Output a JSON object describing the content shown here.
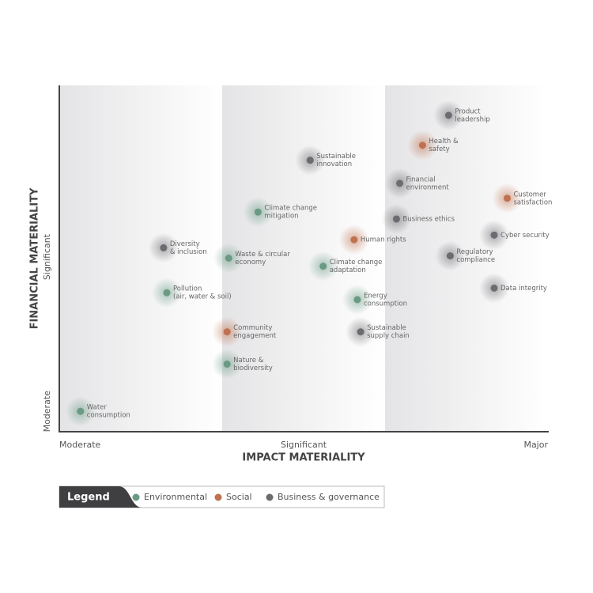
{
  "chart_data": {
    "type": "scatter",
    "xlabel": "IMPACT MATERIALITY",
    "ylabel": "FINANCIAL MATERIALITY",
    "xlim": [
      0,
      3
    ],
    "ylim": [
      0,
      3
    ],
    "xticks": [
      {
        "value": 0,
        "label": "Moderate"
      },
      {
        "value": 1.5,
        "label": "Significant"
      },
      {
        "value": 3,
        "label": "Major"
      }
    ],
    "yticks": [
      {
        "value": 0.17,
        "label": "Moderate"
      },
      {
        "value": 1.51,
        "label": "Significant"
      }
    ],
    "legend_title": "Legend",
    "series": [
      {
        "name": "Environmental",
        "color": "#6a9a84",
        "x": [
          1.22,
          1.04,
          1.62,
          0.66,
          1.83,
          1.03,
          0.13
        ],
        "y": [
          1.9,
          1.5,
          1.43,
          1.2,
          1.14,
          0.58,
          0.17
        ],
        "labels": [
          [
            "Climate change",
            "mitigation"
          ],
          [
            "Waste & circular",
            "economy"
          ],
          [
            "Climate change",
            "adaptation"
          ],
          [
            "Pollution",
            "(air, water & soil)"
          ],
          [
            "Energy",
            "consumption"
          ],
          [
            "Nature &",
            "biodiversity"
          ],
          [
            "Water",
            "consumption"
          ]
        ]
      },
      {
        "name": "Social",
        "color": "#c0714f",
        "x": [
          2.23,
          2.75,
          1.81,
          1.03
        ],
        "y": [
          2.48,
          2.02,
          1.66,
          0.86
        ],
        "labels": [
          [
            "Health &",
            "safety"
          ],
          [
            "Customer",
            "satisfaction"
          ],
          [
            "Human rights"
          ],
          [
            "Community",
            "engagement"
          ]
        ]
      },
      {
        "name": "Business & governance",
        "color": "#6b6b70",
        "x": [
          2.39,
          1.54,
          2.09,
          2.07,
          2.67,
          0.64,
          2.4,
          2.67,
          1.85
        ],
        "y": [
          2.74,
          2.35,
          2.15,
          1.84,
          1.7,
          1.59,
          1.52,
          1.24,
          0.86
        ],
        "labels": [
          [
            "Product",
            "leadership"
          ],
          [
            "Sustainable",
            "innovation"
          ],
          [
            "Financial",
            "environment"
          ],
          [
            "Business ethics"
          ],
          [
            "Cyber security"
          ],
          [
            "Diversity",
            "& inclusion"
          ],
          [
            "Regulatory",
            "compliance"
          ],
          [
            "Data integrity"
          ],
          [
            "Sustainable",
            "supply chain"
          ]
        ]
      }
    ]
  }
}
